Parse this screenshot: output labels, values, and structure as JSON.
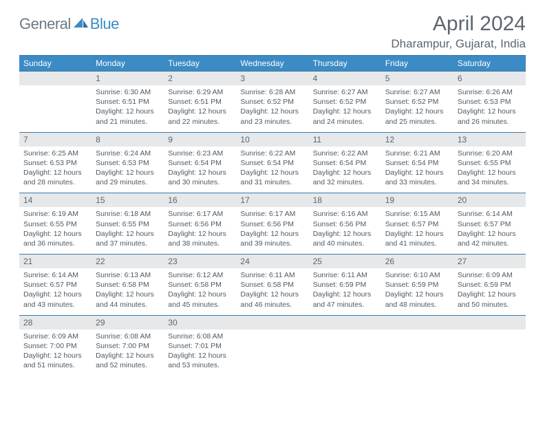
{
  "brand": {
    "part1": "General",
    "part2": "Blue"
  },
  "title": "April 2024",
  "location": "Dharampur, Gujarat, India",
  "colors": {
    "header_bg": "#3b8bc4",
    "header_text": "#ffffff",
    "daynum_bg": "#e6e8ea",
    "divider": "#3a78a8",
    "body_text": "#4f5a63",
    "title_text": "#5b6670",
    "logo_gray": "#6b7a85",
    "logo_blue": "#3b8bc4"
  },
  "day_headers": [
    "Sunday",
    "Monday",
    "Tuesday",
    "Wednesday",
    "Thursday",
    "Friday",
    "Saturday"
  ],
  "weeks": [
    {
      "nums": [
        "",
        "1",
        "2",
        "3",
        "4",
        "5",
        "6"
      ],
      "cells": [
        {
          "sunrise": "",
          "sunset": "",
          "daylight1": "",
          "daylight2": ""
        },
        {
          "sunrise": "Sunrise: 6:30 AM",
          "sunset": "Sunset: 6:51 PM",
          "daylight1": "Daylight: 12 hours",
          "daylight2": "and 21 minutes."
        },
        {
          "sunrise": "Sunrise: 6:29 AM",
          "sunset": "Sunset: 6:51 PM",
          "daylight1": "Daylight: 12 hours",
          "daylight2": "and 22 minutes."
        },
        {
          "sunrise": "Sunrise: 6:28 AM",
          "sunset": "Sunset: 6:52 PM",
          "daylight1": "Daylight: 12 hours",
          "daylight2": "and 23 minutes."
        },
        {
          "sunrise": "Sunrise: 6:27 AM",
          "sunset": "Sunset: 6:52 PM",
          "daylight1": "Daylight: 12 hours",
          "daylight2": "and 24 minutes."
        },
        {
          "sunrise": "Sunrise: 6:27 AM",
          "sunset": "Sunset: 6:52 PM",
          "daylight1": "Daylight: 12 hours",
          "daylight2": "and 25 minutes."
        },
        {
          "sunrise": "Sunrise: 6:26 AM",
          "sunset": "Sunset: 6:53 PM",
          "daylight1": "Daylight: 12 hours",
          "daylight2": "and 26 minutes."
        }
      ]
    },
    {
      "nums": [
        "7",
        "8",
        "9",
        "10",
        "11",
        "12",
        "13"
      ],
      "cells": [
        {
          "sunrise": "Sunrise: 6:25 AM",
          "sunset": "Sunset: 6:53 PM",
          "daylight1": "Daylight: 12 hours",
          "daylight2": "and 28 minutes."
        },
        {
          "sunrise": "Sunrise: 6:24 AM",
          "sunset": "Sunset: 6:53 PM",
          "daylight1": "Daylight: 12 hours",
          "daylight2": "and 29 minutes."
        },
        {
          "sunrise": "Sunrise: 6:23 AM",
          "sunset": "Sunset: 6:54 PM",
          "daylight1": "Daylight: 12 hours",
          "daylight2": "and 30 minutes."
        },
        {
          "sunrise": "Sunrise: 6:22 AM",
          "sunset": "Sunset: 6:54 PM",
          "daylight1": "Daylight: 12 hours",
          "daylight2": "and 31 minutes."
        },
        {
          "sunrise": "Sunrise: 6:22 AM",
          "sunset": "Sunset: 6:54 PM",
          "daylight1": "Daylight: 12 hours",
          "daylight2": "and 32 minutes."
        },
        {
          "sunrise": "Sunrise: 6:21 AM",
          "sunset": "Sunset: 6:54 PM",
          "daylight1": "Daylight: 12 hours",
          "daylight2": "and 33 minutes."
        },
        {
          "sunrise": "Sunrise: 6:20 AM",
          "sunset": "Sunset: 6:55 PM",
          "daylight1": "Daylight: 12 hours",
          "daylight2": "and 34 minutes."
        }
      ]
    },
    {
      "nums": [
        "14",
        "15",
        "16",
        "17",
        "18",
        "19",
        "20"
      ],
      "cells": [
        {
          "sunrise": "Sunrise: 6:19 AM",
          "sunset": "Sunset: 6:55 PM",
          "daylight1": "Daylight: 12 hours",
          "daylight2": "and 36 minutes."
        },
        {
          "sunrise": "Sunrise: 6:18 AM",
          "sunset": "Sunset: 6:55 PM",
          "daylight1": "Daylight: 12 hours",
          "daylight2": "and 37 minutes."
        },
        {
          "sunrise": "Sunrise: 6:17 AM",
          "sunset": "Sunset: 6:56 PM",
          "daylight1": "Daylight: 12 hours",
          "daylight2": "and 38 minutes."
        },
        {
          "sunrise": "Sunrise: 6:17 AM",
          "sunset": "Sunset: 6:56 PM",
          "daylight1": "Daylight: 12 hours",
          "daylight2": "and 39 minutes."
        },
        {
          "sunrise": "Sunrise: 6:16 AM",
          "sunset": "Sunset: 6:56 PM",
          "daylight1": "Daylight: 12 hours",
          "daylight2": "and 40 minutes."
        },
        {
          "sunrise": "Sunrise: 6:15 AM",
          "sunset": "Sunset: 6:57 PM",
          "daylight1": "Daylight: 12 hours",
          "daylight2": "and 41 minutes."
        },
        {
          "sunrise": "Sunrise: 6:14 AM",
          "sunset": "Sunset: 6:57 PM",
          "daylight1": "Daylight: 12 hours",
          "daylight2": "and 42 minutes."
        }
      ]
    },
    {
      "nums": [
        "21",
        "22",
        "23",
        "24",
        "25",
        "26",
        "27"
      ],
      "cells": [
        {
          "sunrise": "Sunrise: 6:14 AM",
          "sunset": "Sunset: 6:57 PM",
          "daylight1": "Daylight: 12 hours",
          "daylight2": "and 43 minutes."
        },
        {
          "sunrise": "Sunrise: 6:13 AM",
          "sunset": "Sunset: 6:58 PM",
          "daylight1": "Daylight: 12 hours",
          "daylight2": "and 44 minutes."
        },
        {
          "sunrise": "Sunrise: 6:12 AM",
          "sunset": "Sunset: 6:58 PM",
          "daylight1": "Daylight: 12 hours",
          "daylight2": "and 45 minutes."
        },
        {
          "sunrise": "Sunrise: 6:11 AM",
          "sunset": "Sunset: 6:58 PM",
          "daylight1": "Daylight: 12 hours",
          "daylight2": "and 46 minutes."
        },
        {
          "sunrise": "Sunrise: 6:11 AM",
          "sunset": "Sunset: 6:59 PM",
          "daylight1": "Daylight: 12 hours",
          "daylight2": "and 47 minutes."
        },
        {
          "sunrise": "Sunrise: 6:10 AM",
          "sunset": "Sunset: 6:59 PM",
          "daylight1": "Daylight: 12 hours",
          "daylight2": "and 48 minutes."
        },
        {
          "sunrise": "Sunrise: 6:09 AM",
          "sunset": "Sunset: 6:59 PM",
          "daylight1": "Daylight: 12 hours",
          "daylight2": "and 50 minutes."
        }
      ]
    },
    {
      "nums": [
        "28",
        "29",
        "30",
        "",
        "",
        "",
        ""
      ],
      "cells": [
        {
          "sunrise": "Sunrise: 6:09 AM",
          "sunset": "Sunset: 7:00 PM",
          "daylight1": "Daylight: 12 hours",
          "daylight2": "and 51 minutes."
        },
        {
          "sunrise": "Sunrise: 6:08 AM",
          "sunset": "Sunset: 7:00 PM",
          "daylight1": "Daylight: 12 hours",
          "daylight2": "and 52 minutes."
        },
        {
          "sunrise": "Sunrise: 6:08 AM",
          "sunset": "Sunset: 7:01 PM",
          "daylight1": "Daylight: 12 hours",
          "daylight2": "and 53 minutes."
        },
        {
          "sunrise": "",
          "sunset": "",
          "daylight1": "",
          "daylight2": ""
        },
        {
          "sunrise": "",
          "sunset": "",
          "daylight1": "",
          "daylight2": ""
        },
        {
          "sunrise": "",
          "sunset": "",
          "daylight1": "",
          "daylight2": ""
        },
        {
          "sunrise": "",
          "sunset": "",
          "daylight1": "",
          "daylight2": ""
        }
      ]
    }
  ]
}
